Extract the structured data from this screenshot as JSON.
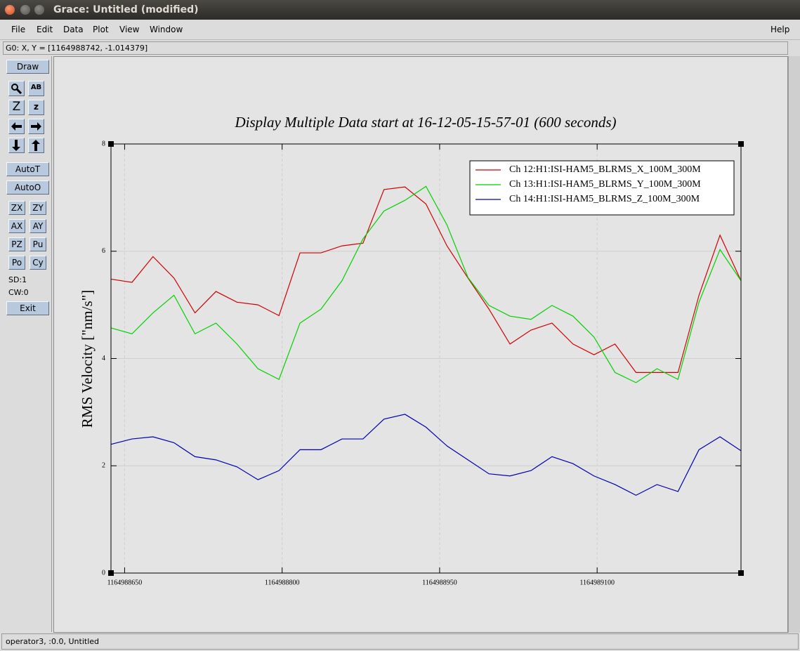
{
  "window": {
    "title": "Grace: Untitled (modified)",
    "menus": [
      "File",
      "Edit",
      "Data",
      "Plot",
      "View",
      "Window"
    ],
    "help": "Help",
    "locator": "G0: X, Y = [1164988742, -1.014379]",
    "status": "operator3, :0.0, Untitled"
  },
  "toolbar": {
    "draw": "Draw",
    "text_tool": "AB",
    "zoom_labels": [
      "Z",
      "z"
    ],
    "auto": [
      "AutoT",
      "AutoO"
    ],
    "buttons": [
      "ZX",
      "ZY",
      "AX",
      "AY",
      "PZ",
      "Pu",
      "Po",
      "Cy"
    ],
    "info": [
      "SD:1",
      "CW:0"
    ],
    "exit": "Exit"
  },
  "chart_data": {
    "type": "line",
    "title": "Display Multiple Data start at 16-12-05-15-57-01 (600 seconds)",
    "y_label": "RMS Velocity [\"nm/s\"]",
    "x": [
      1164988637,
      1164988657,
      1164988677,
      1164988697,
      1164988717,
      1164988737,
      1164988757,
      1164988777,
      1164988797,
      1164988817,
      1164988837,
      1164988857,
      1164988877,
      1164988897,
      1164988917,
      1164988937,
      1164988957,
      1164988977,
      1164988997,
      1164989017,
      1164989037,
      1164989057,
      1164989077,
      1164989097,
      1164989117,
      1164989137,
      1164989157,
      1164989177,
      1164989197,
      1164989217,
      1164989237
    ],
    "series": [
      {
        "name": "Ch 12:H1:ISI-HAM5_BLRMS_X_100M_300M",
        "color": "#d00000",
        "values": [
          5.48,
          5.42,
          5.9,
          5.5,
          4.85,
          5.25,
          5.05,
          5.0,
          4.8,
          5.97,
          5.97,
          6.1,
          6.15,
          7.15,
          7.2,
          6.88,
          6.1,
          5.5,
          4.92,
          4.27,
          4.53,
          4.66,
          4.27,
          4.07,
          4.27,
          3.74,
          3.74,
          3.74,
          5.18,
          6.3,
          5.45
        ]
      },
      {
        "name": "Ch 13:H1:ISI-HAM5_BLRMS_Y_100M_300M",
        "color": "#00d000",
        "values": [
          4.57,
          4.46,
          4.85,
          5.18,
          4.46,
          4.66,
          4.27,
          3.81,
          3.61,
          4.66,
          4.92,
          5.45,
          6.23,
          6.75,
          6.95,
          7.21,
          6.49,
          5.51,
          4.99,
          4.79,
          4.73,
          4.99,
          4.79,
          4.4,
          3.74,
          3.55,
          3.81,
          3.61,
          5.05,
          6.03,
          5.45
        ]
      },
      {
        "name": "Ch 14:H1:ISI-HAM5_BLRMS_Z_100M_300M",
        "color": "#0000b0",
        "values": [
          2.4,
          2.5,
          2.54,
          2.43,
          2.17,
          2.11,
          1.98,
          1.74,
          1.91,
          2.3,
          2.3,
          2.5,
          2.5,
          2.87,
          2.96,
          2.72,
          2.37,
          2.11,
          1.85,
          1.81,
          1.91,
          2.17,
          2.04,
          1.81,
          1.65,
          1.45,
          1.65,
          1.52,
          2.3,
          2.54,
          2.28
        ]
      }
    ],
    "xlim": [
      1164988637,
      1164989237
    ],
    "ylim": [
      0,
      8
    ],
    "xticks": [
      1164988650,
      1164988800,
      1164988950,
      1164989100
    ],
    "yticks": [
      0,
      2,
      4,
      6,
      8
    ],
    "grid": true,
    "legend": "upper right"
  }
}
